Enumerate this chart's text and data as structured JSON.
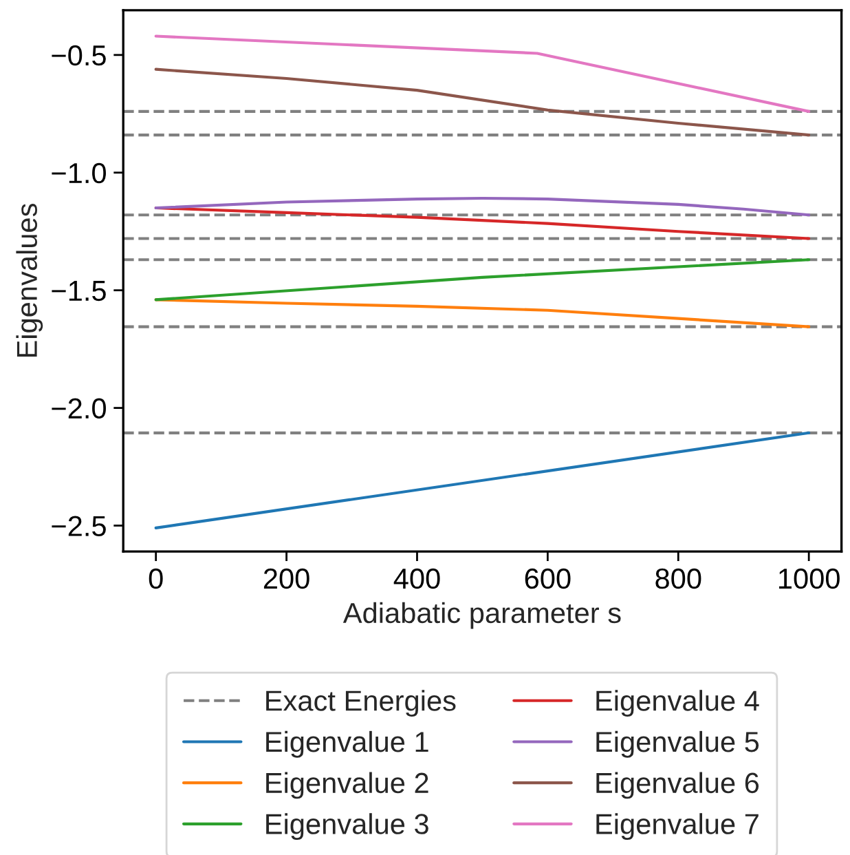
{
  "chart_data": {
    "type": "line",
    "xlabel": "Adiabatic parameter s",
    "ylabel": "Eigenvalues",
    "xlim": [
      -50,
      1050
    ],
    "xticks": [
      0,
      200,
      400,
      600,
      800,
      1000
    ],
    "ylim": [
      -2.61,
      -0.31
    ],
    "yticks": [
      {
        "value": -2.5,
        "label": "−2.5"
      },
      {
        "value": -2.0,
        "label": "−2.0"
      },
      {
        "value": -1.5,
        "label": "−1.5"
      },
      {
        "value": -1.0,
        "label": "−1.0"
      },
      {
        "value": -0.5,
        "label": "−0.5"
      }
    ],
    "ref_lines": [
      {
        "axis": "y",
        "value": -0.74,
        "color": "#808080",
        "line_style": "dashed",
        "label": "Exact Energies"
      },
      {
        "axis": "y",
        "value": -0.84,
        "color": "#808080",
        "line_style": "dashed"
      },
      {
        "axis": "y",
        "value": -1.18,
        "color": "#808080",
        "line_style": "dashed"
      },
      {
        "axis": "y",
        "value": -1.28,
        "color": "#808080",
        "line_style": "dashed"
      },
      {
        "axis": "y",
        "value": -1.37,
        "color": "#808080",
        "line_style": "dashed"
      },
      {
        "axis": "y",
        "value": -1.655,
        "color": "#808080",
        "line_style": "dashed"
      },
      {
        "axis": "y",
        "value": -2.106,
        "color": "#808080",
        "line_style": "dashed"
      }
    ],
    "legend": "bottom",
    "grid": false,
    "marker": "none",
    "line_style": "solid",
    "series": [
      {
        "name": "Eigenvalue 1",
        "color": "#1f77b4",
        "x": [
          0,
          1000
        ],
        "values": [
          -2.51,
          -2.106
        ]
      },
      {
        "name": "Eigenvalue 2",
        "color": "#ff7f0e",
        "x": [
          0,
          200,
          400,
          600,
          800,
          1000
        ],
        "values": [
          -1.54,
          -1.555,
          -1.568,
          -1.585,
          -1.62,
          -1.655
        ]
      },
      {
        "name": "Eigenvalue 3",
        "color": "#2ca02c",
        "x": [
          0,
          500,
          1000
        ],
        "values": [
          -1.54,
          -1.445,
          -1.37
        ]
      },
      {
        "name": "Eigenvalue 4",
        "color": "#d62728",
        "x": [
          0,
          200,
          400,
          600,
          800,
          1000
        ],
        "values": [
          -1.15,
          -1.17,
          -1.19,
          -1.216,
          -1.25,
          -1.28
        ]
      },
      {
        "name": "Eigenvalue 5",
        "color": "#9467bd",
        "x": [
          0,
          200,
          400,
          500,
          600,
          800,
          900,
          1000
        ],
        "values": [
          -1.15,
          -1.125,
          -1.112,
          -1.109,
          -1.112,
          -1.135,
          -1.155,
          -1.18
        ]
      },
      {
        "name": "Eigenvalue 6",
        "color": "#8c564b",
        "x": [
          0,
          200,
          400,
          600,
          800,
          1000
        ],
        "values": [
          -0.561,
          -0.6,
          -0.65,
          -0.734,
          -0.79,
          -0.84
        ]
      },
      {
        "name": "Eigenvalue 7",
        "color": "#e377c2",
        "x": [
          0,
          584,
          1000
        ],
        "values": [
          -0.42,
          -0.493,
          -0.74
        ]
      }
    ]
  }
}
